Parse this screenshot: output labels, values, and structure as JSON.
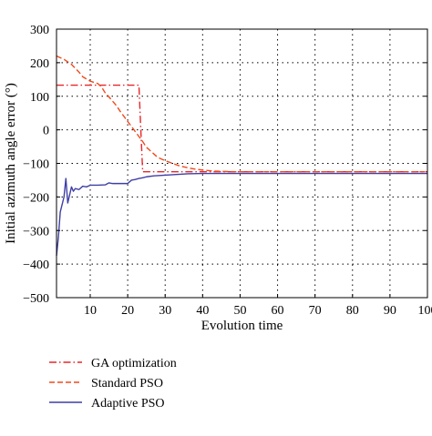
{
  "chart_data": {
    "type": "line",
    "title": "",
    "xlabel": "Evolution time",
    "ylabel": "Initial azimuth angle error (°)",
    "xlim": [
      1,
      100
    ],
    "ylim": [
      -500,
      300
    ],
    "xticks": [
      10,
      20,
      30,
      40,
      50,
      60,
      70,
      80,
      90,
      100
    ],
    "xtick_labels": [
      "10",
      "20",
      "30",
      "40",
      "50",
      "60",
      "70",
      "80",
      "90",
      "100"
    ],
    "yticks": [
      300,
      200,
      100,
      0,
      -100,
      -200,
      -300,
      -400,
      -500
    ],
    "ytick_labels": [
      "300",
      "200",
      "100",
      "0",
      "−100",
      "−200",
      "−300",
      "−400",
      "−500"
    ],
    "grid": "dotted",
    "legend_placement": "below",
    "series": [
      {
        "name": "GA optimization",
        "color": "#e8262a",
        "dash": "dash-dot",
        "x": [
          1,
          23,
          23.5,
          24,
          100
        ],
        "y": [
          133,
          133,
          0,
          -125,
          -125
        ]
      },
      {
        "name": "Standard PSO",
        "color": "#f04a1c",
        "dash": "dashed",
        "x": [
          1,
          3,
          5,
          7,
          8,
          10,
          12,
          13,
          14,
          15,
          16,
          17,
          18,
          19,
          20,
          21,
          22,
          23,
          24,
          25,
          26,
          27,
          28,
          30,
          32,
          34,
          36,
          38,
          40,
          42,
          45,
          50,
          100
        ],
        "y": [
          220,
          210,
          195,
          172,
          158,
          145,
          138,
          128,
          110,
          98,
          85,
          72,
          55,
          40,
          25,
          10,
          -5,
          -20,
          -35,
          -52,
          -62,
          -72,
          -82,
          -92,
          -100,
          -108,
          -113,
          -117,
          -120,
          -122,
          -124,
          -125,
          -125
        ]
      },
      {
        "name": "Adaptive PSO",
        "color": "#3f3fa6",
        "dash": "solid",
        "x": [
          1,
          1.5,
          2,
          3,
          3.5,
          4,
          5,
          5.5,
          6,
          7,
          8,
          9,
          10,
          12,
          14,
          15,
          16,
          18,
          20,
          21,
          22,
          23,
          24,
          25,
          27,
          30,
          33,
          36,
          40,
          50,
          60,
          80,
          100
        ],
        "y": [
          -375,
          -320,
          -245,
          -200,
          -145,
          -218,
          -170,
          -183,
          -175,
          -178,
          -168,
          -170,
          -165,
          -165,
          -164,
          -158,
          -160,
          -160,
          -160,
          -150,
          -148,
          -145,
          -143,
          -140,
          -137,
          -135,
          -133,
          -131,
          -130,
          -130,
          -130,
          -130,
          -130
        ]
      }
    ]
  }
}
